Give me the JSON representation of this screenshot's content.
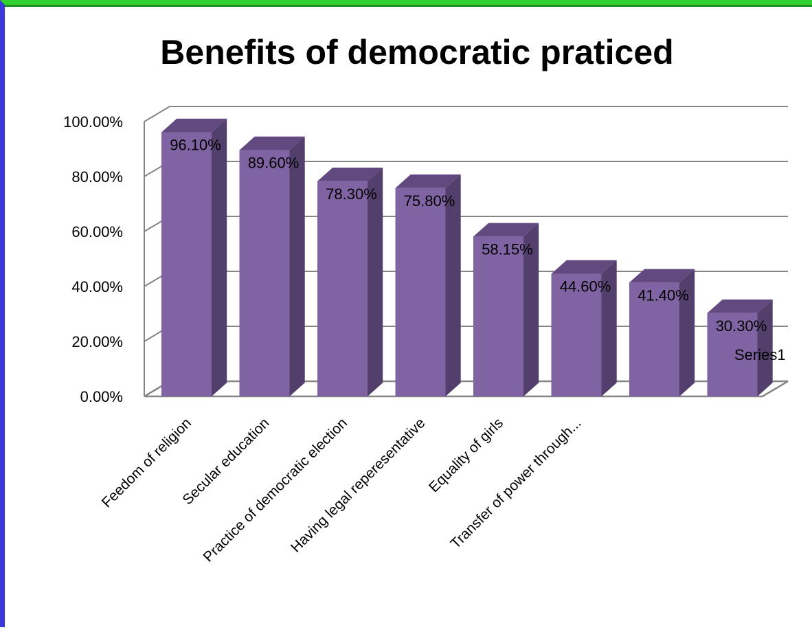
{
  "chart_data": {
    "type": "bar",
    "title": "Benefits of democratic praticed",
    "categories": [
      "Feedom of religion",
      "Secular education",
      "Practice of democratic election",
      "Having legal reperesentative",
      "Equality of girls",
      "Transfer of power through...",
      "",
      ""
    ],
    "series": [
      {
        "name": "Series1",
        "values": [
          96.1,
          89.6,
          78.3,
          75.8,
          58.15,
          44.6,
          41.4,
          30.3
        ],
        "labels": [
          "96.10%",
          "89.60%",
          "78.30%",
          "75.80%",
          "58.15%",
          "44.60%",
          "41.40%",
          "30.30%"
        ],
        "color": "#7f63a2"
      }
    ],
    "ylim": [
      0,
      100
    ],
    "yticks": [
      "0.00%",
      "20.00%",
      "40.00%",
      "60.00%",
      "80.00%",
      "100.00%"
    ],
    "grid": true,
    "legend": "right",
    "colors": {
      "bar_front": "#7f63a2",
      "bar_side": "#533f6c",
      "bar_top": "#62497f",
      "grid": "#858585"
    }
  }
}
